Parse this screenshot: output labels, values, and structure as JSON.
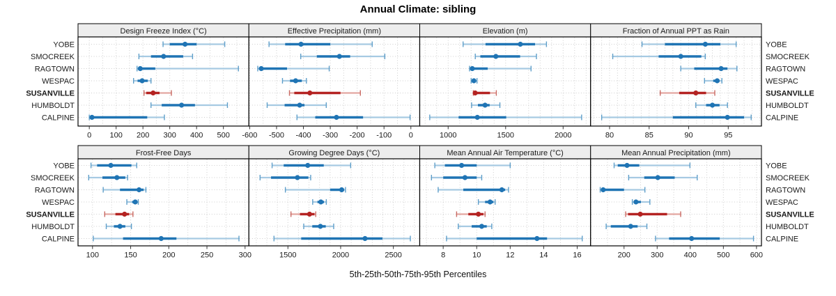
{
  "colors": {
    "blue_dark": "#1F74B4",
    "blue_mid": "#5E9EC9",
    "blue_light": "#A6CAE2",
    "red_dark": "#B42322",
    "red_mid": "#C96A63",
    "red_light": "#E3A6A1",
    "grid": "#CDCDCD",
    "strip_bg": "#EDEDED",
    "border": "#000000",
    "tick": "#333333",
    "text": "#1A1A1A"
  },
  "chart_data": {
    "type": "dotplot-percentiles",
    "title": "Annual Climate: sibling",
    "caption": "5th-25th-50th-75th-95th Percentiles",
    "percentile_levels": [
      5,
      25,
      50,
      75,
      95
    ],
    "rows": [
      "YOBE",
      "SMOCREEK",
      "RAGTOWN",
      "WESPAC",
      "SUSANVILLE",
      "HUMBOLDT",
      "CALPINE"
    ],
    "highlight_row": "SUSANVILLE",
    "legend_position": "none",
    "grid": "dotted",
    "panels": [
      {
        "title": "Design Freeze Index (°C)",
        "row": 0,
        "col": 0,
        "xlim": [
          -42,
          595
        ],
        "ticks": [
          0,
          100,
          200,
          300,
          400,
          500
        ],
        "minor_step": 50,
        "values": {
          "YOBE": [
            275,
            300,
            357,
            400,
            505
          ],
          "SMOCREEK": [
            185,
            230,
            277,
            350,
            385
          ],
          "RAGTOWN": [
            178,
            184,
            190,
            246,
            556
          ],
          "WESPAC": [
            165,
            180,
            197,
            218,
            230
          ],
          "SUSANVILLE": [
            204,
            212,
            238,
            262,
            306
          ],
          "HUMBOLDT": [
            230,
            270,
            344,
            394,
            515
          ],
          "CALPINE": [
            0,
            4,
            10,
            216,
            280
          ]
        }
      },
      {
        "title": "Effective Precipitation (mm)",
        "row": 0,
        "col": 1,
        "xlim": [
          -603,
          33
        ],
        "ticks": [
          -600,
          -500,
          -400,
          -300,
          -200,
          -100,
          0
        ],
        "minor_step": 50,
        "values": {
          "YOBE": [
            -528,
            -468,
            -409,
            -300,
            -144
          ],
          "SMOCREEK": [
            -410,
            -350,
            -266,
            -226,
            -97
          ],
          "RAGTOWN": [
            -570,
            -563,
            -557,
            -461,
            -304
          ],
          "WESPAC": [
            -478,
            -450,
            -429,
            -406,
            -389
          ],
          "SUSANVILLE": [
            -452,
            -434,
            -376,
            -262,
            -188
          ],
          "HUMBOLDT": [
            -535,
            -470,
            -414,
            -396,
            -315
          ],
          "CALPINE": [
            -424,
            -356,
            -277,
            -178,
            -3
          ]
        }
      },
      {
        "title": "Elevation (m)",
        "row": 0,
        "col": 2,
        "xlim": [
          753,
          2239
        ],
        "ticks": [
          1000,
          1500,
          2000
        ],
        "minor_step": 100,
        "values": {
          "YOBE": [
            1130,
            1325,
            1628,
            1756,
            1855
          ],
          "SMOCREEK": [
            1236,
            1280,
            1415,
            1626,
            1768
          ],
          "RAGTOWN": [
            1186,
            1196,
            1210,
            1344,
            1721
          ],
          "WESPAC": [
            1200,
            1215,
            1224,
            1240,
            1251
          ],
          "SUSANVILLE": [
            1219,
            1228,
            1235,
            1364,
            1419
          ],
          "HUMBOLDT": [
            1204,
            1259,
            1321,
            1361,
            1450
          ],
          "CALPINE": [
            840,
            1091,
            1254,
            1505,
            2161
          ]
        }
      },
      {
        "title": "Fraction of Annual PPT as Rain",
        "row": 0,
        "col": 3,
        "xlim": [
          77.6,
          99.2
        ],
        "ticks": [
          80,
          85,
          90,
          95
        ],
        "minor_step": 1,
        "values": {
          "YOBE": [
            84.1,
            87.0,
            92.1,
            94.0,
            96.0
          ],
          "SMOCREEK": [
            80.4,
            86.2,
            89.0,
            91.6,
            92.1
          ],
          "RAGTOWN": [
            89.0,
            90.7,
            94.1,
            94.9,
            96.1
          ],
          "WESPAC": [
            92.0,
            93.1,
            93.6,
            93.9,
            94.2
          ],
          "SUSANVILLE": [
            86.4,
            88.8,
            90.9,
            92.2,
            93.3
          ],
          "HUMBOLDT": [
            90.9,
            92.2,
            93.0,
            93.9,
            94.9
          ],
          "CALPINE": [
            79.0,
            88.0,
            94.9,
            97.0,
            97.9
          ]
        }
      },
      {
        "title": "Frost-Free Days",
        "row": 1,
        "col": 0,
        "xlim": [
          81,
          305
        ],
        "ticks": [
          100,
          150,
          200,
          250,
          300
        ],
        "minor_step": 25,
        "values": {
          "YOBE": [
            98,
            106,
            124,
            151,
            158
          ],
          "SMOCREEK": [
            95,
            113,
            132,
            143,
            146
          ],
          "RAGTOWN": [
            114,
            136,
            161,
            167,
            170
          ],
          "WESPAC": [
            145,
            152,
            156,
            158,
            160
          ],
          "SUSANVILLE": [
            116,
            130,
            142,
            148,
            153
          ],
          "HUMBOLDT": [
            118,
            128,
            136,
            143,
            151
          ],
          "CALPINE": [
            101,
            140,
            190,
            210,
            292
          ]
        }
      },
      {
        "title": "Growing Degree Days (°C)",
        "row": 1,
        "col": 1,
        "xlim": [
          1130,
          2750
        ],
        "ticks": [
          1500,
          2000,
          2500
        ],
        "minor_step": 100,
        "values": {
          "YOBE": [
            1350,
            1460,
            1688,
            1840,
            2095
          ],
          "SMOCREEK": [
            1236,
            1340,
            1590,
            1694,
            1716
          ],
          "RAGTOWN": [
            1476,
            1900,
            2010,
            2032,
            2046
          ],
          "WESPAC": [
            1735,
            1780,
            1813,
            1842,
            1864
          ],
          "SUSANVILLE": [
            1529,
            1614,
            1705,
            1752,
            1764
          ],
          "HUMBOLDT": [
            1650,
            1731,
            1808,
            1859,
            1934
          ],
          "CALPINE": [
            1368,
            1626,
            2231,
            2396,
            2661
          ]
        }
      },
      {
        "title": "Mean Annual Air Temperature (°C)",
        "row": 1,
        "col": 2,
        "xlim": [
          6.6,
          16.8
        ],
        "ticks": [
          8,
          10,
          12,
          14,
          16
        ],
        "minor_step": 1,
        "values": {
          "YOBE": [
            7.5,
            8.1,
            9.1,
            10.0,
            12.0
          ],
          "SMOCREEK": [
            7.3,
            8.0,
            9.3,
            10.0,
            10.3
          ],
          "RAGTOWN": [
            7.7,
            9.2,
            11.5,
            11.7,
            11.9
          ],
          "WESPAC": [
            10.1,
            10.5,
            10.8,
            11.0,
            11.1
          ],
          "SUSANVILLE": [
            8.8,
            9.5,
            10.1,
            10.4,
            10.5
          ],
          "HUMBOLDT": [
            8.9,
            9.7,
            10.3,
            10.6,
            10.9
          ],
          "CALPINE": [
            8.2,
            10.0,
            13.6,
            14.2,
            16.3
          ]
        }
      },
      {
        "title": "Mean Annual Precipitation (mm)",
        "row": 1,
        "col": 3,
        "xlim": [
          99,
          615
        ],
        "ticks": [
          200,
          300,
          400,
          500,
          600
        ],
        "minor_step": 50,
        "values": {
          "YOBE": [
            170,
            181,
            209,
            246,
            399
          ],
          "SMOCREEK": [
            214,
            261,
            302,
            353,
            421
          ],
          "RAGTOWN": [
            128,
            132,
            137,
            200,
            263
          ],
          "WESPAC": [
            225,
            231,
            236,
            251,
            278
          ],
          "SUSANVILLE": [
            205,
            212,
            249,
            330,
            371
          ],
          "HUMBOLDT": [
            146,
            160,
            220,
            241,
            269
          ],
          "CALPINE": [
            295,
            336,
            404,
            489,
            591
          ]
        }
      }
    ]
  }
}
